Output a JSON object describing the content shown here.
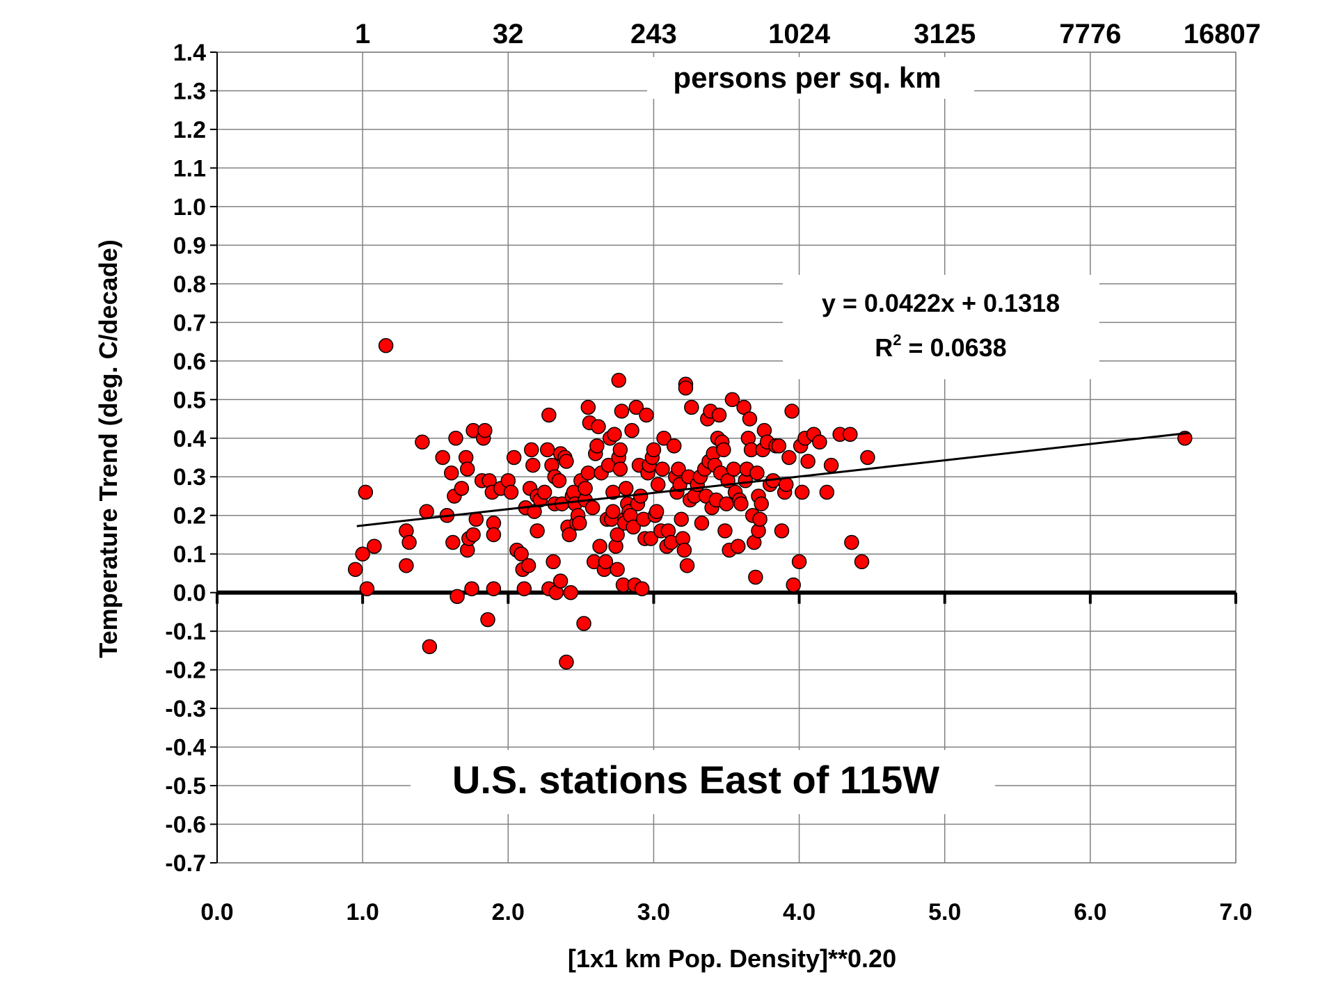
{
  "chart_data": {
    "type": "scatter",
    "title": "U.S. stations East of 115W",
    "xlabel": "[1x1 km Pop. Density]**0.20",
    "ylabel": "Temperature Trend (deg. C/decade)",
    "secondary_xlabel": "persons per sq. km",
    "xlim": [
      0.0,
      7.0
    ],
    "ylim": [
      -0.7,
      1.4
    ],
    "x_ticks": [
      "0.0",
      "1.0",
      "2.0",
      "3.0",
      "4.0",
      "5.0",
      "6.0",
      "7.0"
    ],
    "y_ticks": [
      "1.4",
      "1.3",
      "1.2",
      "1.1",
      "1.0",
      "0.9",
      "0.8",
      "0.7",
      "0.6",
      "0.5",
      "0.4",
      "0.3",
      "0.2",
      "0.1",
      "0.0",
      "-0.1",
      "-0.2",
      "-0.3",
      "-0.4",
      "-0.5",
      "-0.6",
      "-0.7"
    ],
    "top_ticks": [
      {
        "label": "1",
        "x": 1.0
      },
      {
        "label": "32",
        "x": 2.0
      },
      {
        "label": "243",
        "x": 3.0
      },
      {
        "label": "1024",
        "x": 4.0
      },
      {
        "label": "3125",
        "x": 5.0
      },
      {
        "label": "7776",
        "x": 6.0
      },
      {
        "label": "16807",
        "x": 7.0
      }
    ],
    "grid": true,
    "trendline": {
      "slope": 0.0422,
      "intercept": 0.1318,
      "x_range": [
        0.96,
        6.68
      ]
    },
    "equation_line1": "y = 0.0422x + 0.1318",
    "r2_prefix": "R",
    "r2_sup": "2",
    "r2_rest": " = 0.0638",
    "marker_color": "#ff0000",
    "points": [
      [
        0.95,
        0.06
      ],
      [
        1.0,
        0.1
      ],
      [
        1.02,
        0.26
      ],
      [
        1.03,
        0.01
      ],
      [
        1.08,
        0.12
      ],
      [
        1.16,
        0.64
      ],
      [
        1.3,
        0.16
      ],
      [
        1.3,
        0.07
      ],
      [
        1.32,
        0.13
      ],
      [
        1.41,
        0.39
      ],
      [
        1.44,
        0.21
      ],
      [
        1.46,
        -0.14
      ],
      [
        1.55,
        0.35
      ],
      [
        1.58,
        0.2
      ],
      [
        1.61,
        0.31
      ],
      [
        1.62,
        0.13
      ],
      [
        1.63,
        0.25
      ],
      [
        1.64,
        0.4
      ],
      [
        1.65,
        -0.01
      ],
      [
        1.68,
        0.27
      ],
      [
        1.71,
        0.35
      ],
      [
        1.72,
        0.32
      ],
      [
        1.72,
        0.11
      ],
      [
        1.73,
        0.14
      ],
      [
        1.75,
        0.01
      ],
      [
        1.76,
        0.15
      ],
      [
        1.76,
        0.42
      ],
      [
        1.78,
        0.19
      ],
      [
        1.82,
        0.29
      ],
      [
        1.83,
        0.4
      ],
      [
        1.84,
        0.42
      ],
      [
        1.86,
        -0.07
      ],
      [
        1.87,
        0.29
      ],
      [
        1.89,
        0.26
      ],
      [
        1.9,
        0.18
      ],
      [
        1.9,
        0.15
      ],
      [
        1.9,
        0.01
      ],
      [
        1.95,
        0.27
      ],
      [
        2.0,
        0.29
      ],
      [
        2.02,
        0.26
      ],
      [
        2.04,
        0.35
      ],
      [
        2.06,
        0.11
      ],
      [
        2.09,
        0.1
      ],
      [
        2.1,
        0.06
      ],
      [
        2.11,
        0.01
      ],
      [
        2.12,
        0.22
      ],
      [
        2.14,
        0.07
      ],
      [
        2.15,
        0.27
      ],
      [
        2.16,
        0.37
      ],
      [
        2.17,
        0.33
      ],
      [
        2.18,
        0.21
      ],
      [
        2.2,
        0.16
      ],
      [
        2.2,
        0.25
      ],
      [
        2.22,
        0.24
      ],
      [
        2.25,
        0.26
      ],
      [
        2.27,
        0.37
      ],
      [
        2.28,
        0.01
      ],
      [
        2.28,
        0.46
      ],
      [
        2.3,
        0.33
      ],
      [
        2.31,
        0.08
      ],
      [
        2.32,
        0.3
      ],
      [
        2.32,
        0.23
      ],
      [
        2.33,
        0.0
      ],
      [
        2.35,
        0.29
      ],
      [
        2.36,
        0.36
      ],
      [
        2.36,
        0.03
      ],
      [
        2.37,
        0.23
      ],
      [
        2.39,
        0.35
      ],
      [
        2.4,
        0.34
      ],
      [
        2.4,
        -0.18
      ],
      [
        2.41,
        0.17
      ],
      [
        2.42,
        0.15
      ],
      [
        2.43,
        0.0
      ],
      [
        2.44,
        0.25
      ],
      [
        2.45,
        0.26
      ],
      [
        2.46,
        0.23
      ],
      [
        2.47,
        0.18
      ],
      [
        2.48,
        0.2
      ],
      [
        2.49,
        0.18
      ],
      [
        2.5,
        0.29
      ],
      [
        2.52,
        -0.08
      ],
      [
        2.53,
        0.24
      ],
      [
        2.53,
        0.27
      ],
      [
        2.55,
        0.31
      ],
      [
        2.55,
        0.48
      ],
      [
        2.56,
        0.44
      ],
      [
        2.58,
        0.22
      ],
      [
        2.59,
        0.08
      ],
      [
        2.6,
        0.36
      ],
      [
        2.61,
        0.38
      ],
      [
        2.62,
        0.43
      ],
      [
        2.63,
        0.12
      ],
      [
        2.64,
        0.31
      ],
      [
        2.66,
        0.06
      ],
      [
        2.67,
        0.08
      ],
      [
        2.68,
        0.19
      ],
      [
        2.69,
        0.33
      ],
      [
        2.7,
        0.4
      ],
      [
        2.71,
        0.19
      ],
      [
        2.72,
        0.21
      ],
      [
        2.72,
        0.26
      ],
      [
        2.73,
        0.41
      ],
      [
        2.74,
        0.12
      ],
      [
        2.75,
        0.15
      ],
      [
        2.75,
        0.06
      ],
      [
        2.76,
        0.55
      ],
      [
        2.76,
        0.35
      ],
      [
        2.77,
        0.32
      ],
      [
        2.77,
        0.37
      ],
      [
        2.78,
        0.47
      ],
      [
        2.79,
        0.02
      ],
      [
        2.8,
        0.19
      ],
      [
        2.8,
        0.18
      ],
      [
        2.81,
        0.27
      ],
      [
        2.82,
        0.23
      ],
      [
        2.83,
        0.21
      ],
      [
        2.84,
        0.2
      ],
      [
        2.85,
        0.42
      ],
      [
        2.86,
        0.17
      ],
      [
        2.87,
        0.02
      ],
      [
        2.88,
        0.48
      ],
      [
        2.89,
        0.23
      ],
      [
        2.9,
        0.33
      ],
      [
        2.91,
        0.25
      ],
      [
        2.92,
        0.01
      ],
      [
        2.93,
        0.19
      ],
      [
        2.94,
        0.14
      ],
      [
        2.95,
        0.46
      ],
      [
        2.96,
        0.31
      ],
      [
        2.97,
        0.33
      ],
      [
        2.98,
        0.14
      ],
      [
        2.99,
        0.35
      ],
      [
        3.0,
        0.37
      ],
      [
        3.01,
        0.2
      ],
      [
        3.02,
        0.21
      ],
      [
        3.03,
        0.28
      ],
      [
        3.05,
        0.16
      ],
      [
        3.06,
        0.32
      ],
      [
        3.07,
        0.4
      ],
      [
        3.09,
        0.12
      ],
      [
        3.1,
        0.16
      ],
      [
        3.12,
        0.13
      ],
      [
        3.14,
        0.38
      ],
      [
        3.15,
        0.3
      ],
      [
        3.16,
        0.26
      ],
      [
        3.17,
        0.32
      ],
      [
        3.18,
        0.28
      ],
      [
        3.19,
        0.19
      ],
      [
        3.2,
        0.14
      ],
      [
        3.21,
        0.11
      ],
      [
        3.22,
        0.54
      ],
      [
        3.22,
        0.53
      ],
      [
        3.23,
        0.07
      ],
      [
        3.24,
        0.3
      ],
      [
        3.25,
        0.24
      ],
      [
        3.26,
        0.48
      ],
      [
        3.28,
        0.25
      ],
      [
        3.3,
        0.28
      ],
      [
        3.32,
        0.3
      ],
      [
        3.33,
        0.18
      ],
      [
        3.35,
        0.32
      ],
      [
        3.36,
        0.25
      ],
      [
        3.37,
        0.45
      ],
      [
        3.38,
        0.34
      ],
      [
        3.39,
        0.47
      ],
      [
        3.4,
        0.22
      ],
      [
        3.41,
        0.36
      ],
      [
        3.42,
        0.33
      ],
      [
        3.43,
        0.24
      ],
      [
        3.44,
        0.4
      ],
      [
        3.45,
        0.46
      ],
      [
        3.46,
        0.31
      ],
      [
        3.47,
        0.39
      ],
      [
        3.48,
        0.37
      ],
      [
        3.49,
        0.16
      ],
      [
        3.5,
        0.23
      ],
      [
        3.51,
        0.29
      ],
      [
        3.52,
        0.11
      ],
      [
        3.54,
        0.5
      ],
      [
        3.55,
        0.32
      ],
      [
        3.56,
        0.26
      ],
      [
        3.58,
        0.12
      ],
      [
        3.59,
        0.24
      ],
      [
        3.6,
        0.23
      ],
      [
        3.62,
        0.48
      ],
      [
        3.63,
        0.29
      ],
      [
        3.64,
        0.32
      ],
      [
        3.65,
        0.4
      ],
      [
        3.66,
        0.45
      ],
      [
        3.67,
        0.37
      ],
      [
        3.68,
        0.2
      ],
      [
        3.69,
        0.13
      ],
      [
        3.7,
        0.04
      ],
      [
        3.71,
        0.31
      ],
      [
        3.72,
        0.25
      ],
      [
        3.72,
        0.16
      ],
      [
        3.73,
        0.19
      ],
      [
        3.74,
        0.23
      ],
      [
        3.75,
        0.37
      ],
      [
        3.76,
        0.42
      ],
      [
        3.78,
        0.39
      ],
      [
        3.8,
        0.28
      ],
      [
        3.82,
        0.29
      ],
      [
        3.84,
        0.38
      ],
      [
        3.86,
        0.38
      ],
      [
        3.88,
        0.16
      ],
      [
        3.9,
        0.26
      ],
      [
        3.91,
        0.28
      ],
      [
        3.93,
        0.35
      ],
      [
        3.95,
        0.47
      ],
      [
        3.96,
        0.02
      ],
      [
        4.0,
        0.08
      ],
      [
        4.01,
        0.38
      ],
      [
        4.02,
        0.26
      ],
      [
        4.04,
        0.4
      ],
      [
        4.06,
        0.34
      ],
      [
        4.1,
        0.41
      ],
      [
        4.14,
        0.39
      ],
      [
        4.19,
        0.26
      ],
      [
        4.22,
        0.33
      ],
      [
        4.28,
        0.41
      ],
      [
        4.35,
        0.41
      ],
      [
        4.36,
        0.13
      ],
      [
        4.43,
        0.08
      ],
      [
        4.47,
        0.35
      ],
      [
        6.65,
        0.4
      ]
    ]
  }
}
